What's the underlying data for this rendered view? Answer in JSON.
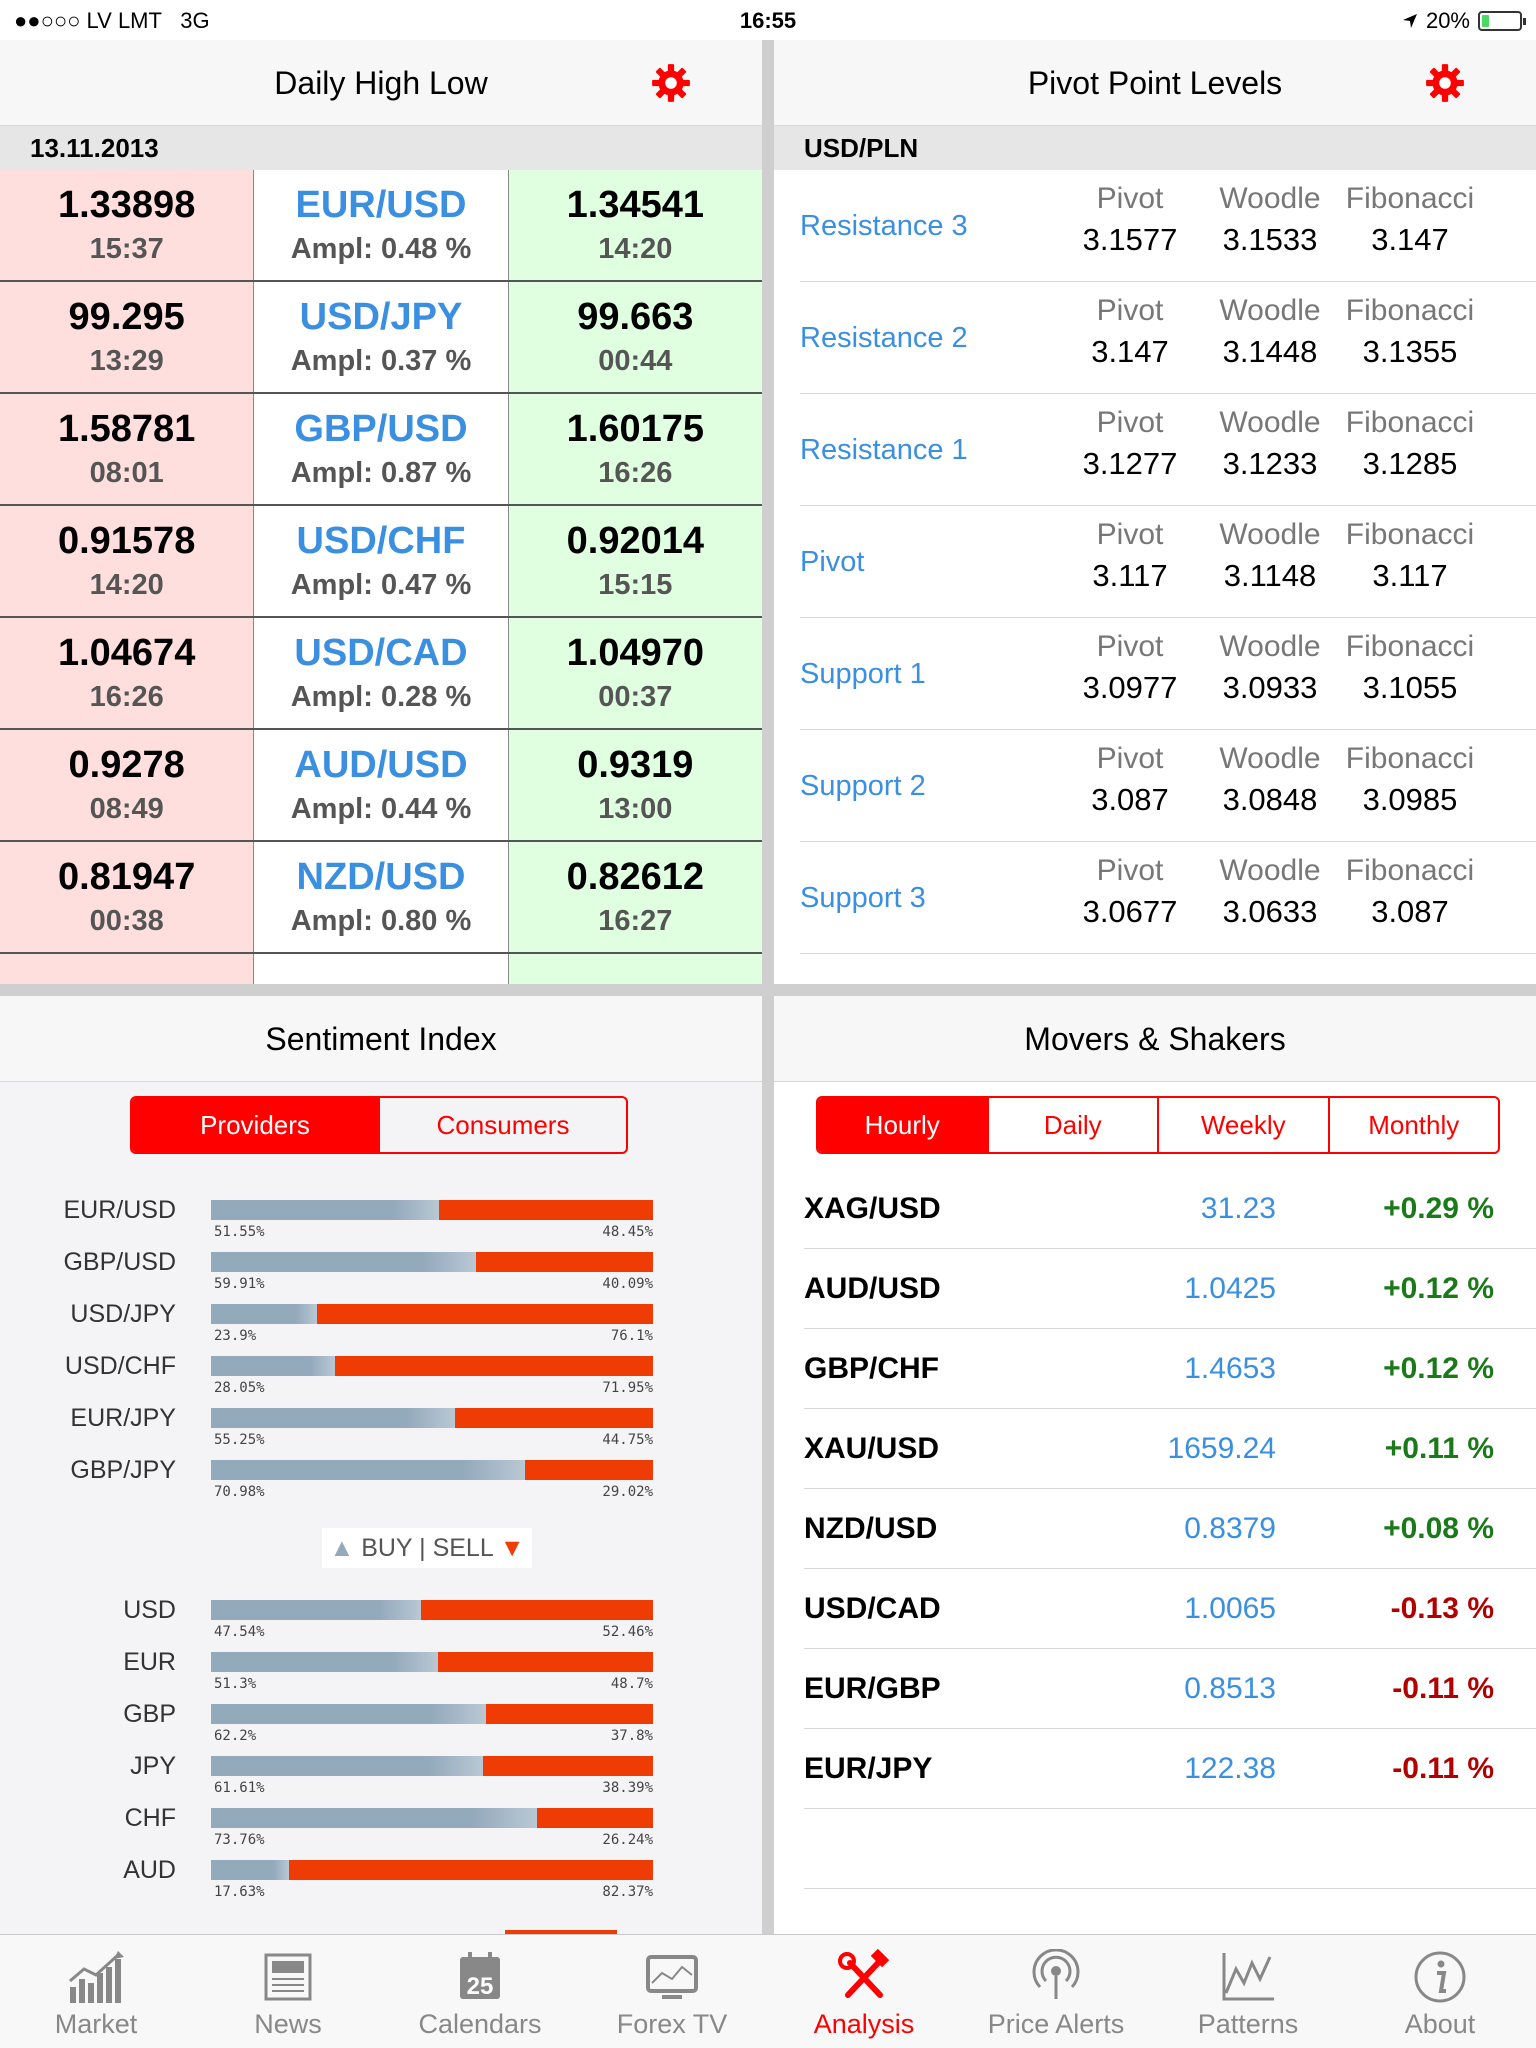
{
  "status": {
    "carrier": "●●○○○ LV LMT",
    "network": "3G",
    "time": "16:55",
    "battery": "20%",
    "battery_level": 0.2
  },
  "high_low": {
    "title": "Daily High Low",
    "date": "13.11.2013",
    "rows": [
      {
        "low": "1.33898",
        "low_time": "15:37",
        "pair": "EUR/USD",
        "ampl": "Ampl: 0.48 %",
        "high": "1.34541",
        "high_time": "14:20"
      },
      {
        "low": "99.295",
        "low_time": "13:29",
        "pair": "USD/JPY",
        "ampl": "Ampl: 0.37 %",
        "high": "99.663",
        "high_time": "00:44"
      },
      {
        "low": "1.58781",
        "low_time": "08:01",
        "pair": "GBP/USD",
        "ampl": "Ampl: 0.87 %",
        "high": "1.60175",
        "high_time": "16:26"
      },
      {
        "low": "0.91578",
        "low_time": "14:20",
        "pair": "USD/CHF",
        "ampl": "Ampl: 0.47 %",
        "high": "0.92014",
        "high_time": "15:15"
      },
      {
        "low": "1.04674",
        "low_time": "16:26",
        "pair": "USD/CAD",
        "ampl": "Ampl: 0.28 %",
        "high": "1.04970",
        "high_time": "00:37"
      },
      {
        "low": "0.9278",
        "low_time": "08:49",
        "pair": "AUD/USD",
        "ampl": "Ampl: 0.44 %",
        "high": "0.9319",
        "high_time": "13:00"
      },
      {
        "low": "0.81947",
        "low_time": "00:38",
        "pair": "NZD/USD",
        "ampl": "Ampl: 0.80 %",
        "high": "0.82612",
        "high_time": "16:27"
      }
    ]
  },
  "pivot": {
    "title": "Pivot Point Levels",
    "pair": "USD/PLN",
    "col_labels": [
      "Pivot",
      "Woodle",
      "Fibonacci"
    ],
    "rows": [
      {
        "name": "Resistance 3",
        "values": [
          "3.1577",
          "3.1533",
          "3.147"
        ]
      },
      {
        "name": "Resistance 2",
        "values": [
          "3.147",
          "3.1448",
          "3.1355"
        ]
      },
      {
        "name": "Resistance 1",
        "values": [
          "3.1277",
          "3.1233",
          "3.1285"
        ]
      },
      {
        "name": "Pivot",
        "values": [
          "3.117",
          "3.1148",
          "3.117"
        ]
      },
      {
        "name": "Support 1",
        "values": [
          "3.0977",
          "3.0933",
          "3.1055"
        ]
      },
      {
        "name": "Support 2",
        "values": [
          "3.087",
          "3.0848",
          "3.0985"
        ]
      },
      {
        "name": "Support 3",
        "values": [
          "3.0677",
          "3.0633",
          "3.087"
        ]
      }
    ]
  },
  "sentiment": {
    "title": "Sentiment Index",
    "tabs": [
      "Providers",
      "Consumers"
    ],
    "legend_buy": "BUY",
    "legend_sep": "|",
    "legend_sell": "SELL",
    "pairs": [
      {
        "label": "EUR/USD",
        "buy": 51.55,
        "buy_text": "51.55%",
        "sell_text": "48.45%"
      },
      {
        "label": "GBP/USD",
        "buy": 59.91,
        "buy_text": "59.91%",
        "sell_text": "40.09%"
      },
      {
        "label": "USD/JPY",
        "buy": 23.9,
        "buy_text": "23.9%",
        "sell_text": "76.1%"
      },
      {
        "label": "USD/CHF",
        "buy": 28.05,
        "buy_text": "28.05%",
        "sell_text": "71.95%"
      },
      {
        "label": "EUR/JPY",
        "buy": 55.25,
        "buy_text": "55.25%",
        "sell_text": "44.75%"
      },
      {
        "label": "GBP/JPY",
        "buy": 70.98,
        "buy_text": "70.98%",
        "sell_text": "29.02%"
      }
    ],
    "currencies": [
      {
        "label": "USD",
        "buy": 47.54,
        "buy_text": "47.54%",
        "sell_text": "52.46%"
      },
      {
        "label": "EUR",
        "buy": 51.3,
        "buy_text": "51.3%",
        "sell_text": "48.7%"
      },
      {
        "label": "GBP",
        "buy": 62.2,
        "buy_text": "62.2%",
        "sell_text": "37.8%"
      },
      {
        "label": "JPY",
        "buy": 61.61,
        "buy_text": "61.61%",
        "sell_text": "38.39%"
      },
      {
        "label": "CHF",
        "buy": 73.76,
        "buy_text": "73.76%",
        "sell_text": "26.24%"
      },
      {
        "label": "AUD",
        "buy": 17.63,
        "buy_text": "17.63%",
        "sell_text": "82.37%"
      }
    ]
  },
  "movers": {
    "title": "Movers & Shakers",
    "tabs": [
      "Hourly",
      "Daily",
      "Weekly",
      "Monthly"
    ],
    "rows": [
      {
        "symbol": "XAG/USD",
        "price": "31.23",
        "change": "+0.29 %",
        "up": true
      },
      {
        "symbol": "AUD/USD",
        "price": "1.0425",
        "change": "+0.12 %",
        "up": true
      },
      {
        "symbol": "GBP/CHF",
        "price": "1.4653",
        "change": "+0.12 %",
        "up": true
      },
      {
        "symbol": "XAU/USD",
        "price": "1659.24",
        "change": "+0.11 %",
        "up": true
      },
      {
        "symbol": "NZD/USD",
        "price": "0.8379",
        "change": "+0.08 %",
        "up": true
      },
      {
        "symbol": "USD/CAD",
        "price": "1.0065",
        "change": "-0.13 %",
        "up": false
      },
      {
        "symbol": "EUR/GBP",
        "price": "0.8513",
        "change": "-0.11 %",
        "up": false
      },
      {
        "symbol": "EUR/JPY",
        "price": "122.38",
        "change": "-0.11 %",
        "up": false
      }
    ]
  },
  "colors": {
    "accent": "#ff0000",
    "link": "#3a8fe0",
    "up": "#1a7a1a",
    "down": "#b00000",
    "buy": "#93a9bc",
    "sell": "#ef3c05"
  },
  "tabbar": [
    {
      "label": "Market",
      "icon": "market-chart-icon"
    },
    {
      "label": "News",
      "icon": "newspaper-icon"
    },
    {
      "label": "Calendars",
      "icon": "calendar-icon",
      "badge": "25"
    },
    {
      "label": "Forex TV",
      "icon": "tv-icon"
    },
    {
      "label": "Analysis",
      "icon": "tools-icon",
      "active": true
    },
    {
      "label": "Price Alerts",
      "icon": "broadcast-icon"
    },
    {
      "label": "Patterns",
      "icon": "pattern-chart-icon"
    },
    {
      "label": "About",
      "icon": "info-icon"
    }
  ]
}
